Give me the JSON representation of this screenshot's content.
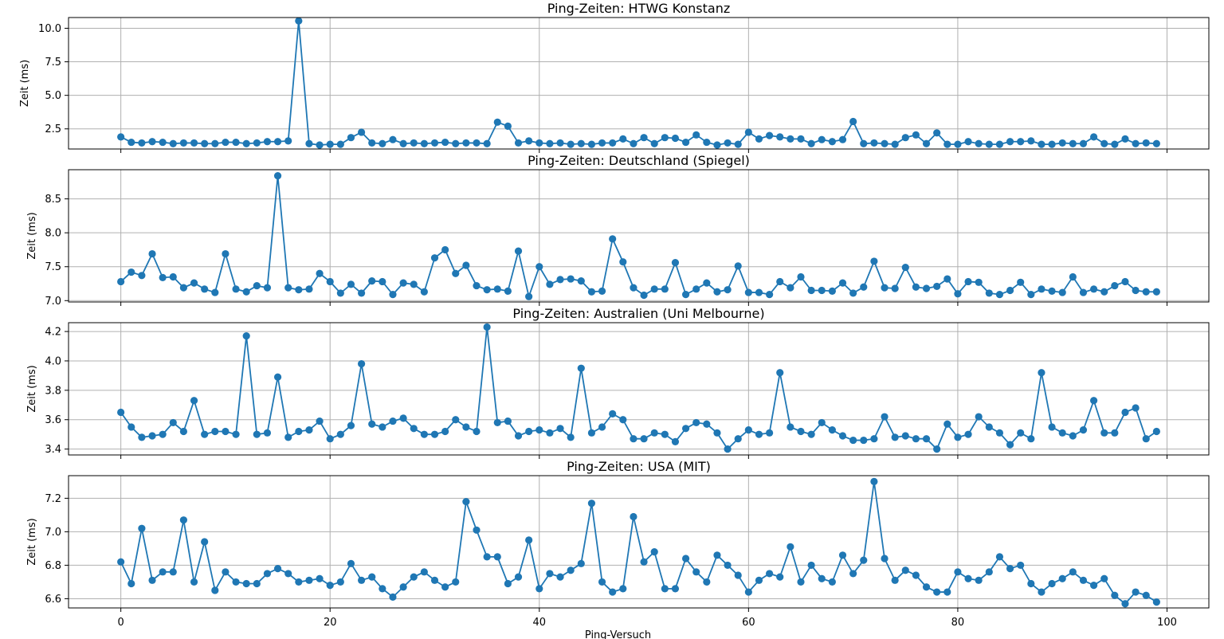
{
  "chart_data": [
    {
      "type": "line",
      "title": "Ping-Zeiten: HTWG Konstanz",
      "ylabel": "Zeit (ms)",
      "xlim": [
        -5,
        104
      ],
      "ylim": [
        1.0,
        10.8
      ],
      "yticks": [
        "2.5",
        "5.0",
        "7.5",
        "10.0"
      ],
      "color": "#1f77b4",
      "values": [
        1.9,
        1.5,
        1.45,
        1.55,
        1.5,
        1.4,
        1.45,
        1.45,
        1.4,
        1.4,
        1.5,
        1.5,
        1.4,
        1.45,
        1.55,
        1.55,
        1.6,
        10.55,
        1.4,
        1.3,
        1.35,
        1.35,
        1.85,
        2.25,
        1.45,
        1.4,
        1.7,
        1.4,
        1.45,
        1.4,
        1.45,
        1.5,
        1.4,
        1.45,
        1.45,
        1.4,
        3.0,
        2.7,
        1.45,
        1.6,
        1.45,
        1.4,
        1.45,
        1.35,
        1.4,
        1.35,
        1.45,
        1.45,
        1.75,
        1.4,
        1.85,
        1.4,
        1.85,
        1.8,
        1.5,
        2.05,
        1.5,
        1.3,
        1.45,
        1.35,
        2.25,
        1.75,
        2.0,
        1.9,
        1.75,
        1.75,
        1.4,
        1.7,
        1.55,
        1.7,
        3.05,
        1.4,
        1.45,
        1.4,
        1.35,
        1.85,
        2.05,
        1.4,
        2.2,
        1.35,
        1.35,
        1.55,
        1.4,
        1.35,
        1.35,
        1.55,
        1.55,
        1.6,
        1.35,
        1.35,
        1.45,
        1.4,
        1.4,
        1.9,
        1.4,
        1.35,
        1.75,
        1.4,
        1.45,
        1.4
      ]
    },
    {
      "type": "line",
      "title": "Ping-Zeiten: Deutschland (Spiegel)",
      "ylabel": "Zeit (ms)",
      "xlim": [
        -5,
        104
      ],
      "ylim": [
        6.98,
        8.93
      ],
      "yticks": [
        "7.0",
        "7.5",
        "8.0",
        "8.5"
      ],
      "color": "#1f77b4",
      "values": [
        7.28,
        7.42,
        7.37,
        7.69,
        7.34,
        7.35,
        7.19,
        7.26,
        7.17,
        7.12,
        7.69,
        7.17,
        7.13,
        7.22,
        7.19,
        8.84,
        7.19,
        7.16,
        7.17,
        7.4,
        7.28,
        7.11,
        7.24,
        7.11,
        7.29,
        7.28,
        7.09,
        7.26,
        7.24,
        7.13,
        7.63,
        7.75,
        7.4,
        7.52,
        7.22,
        7.16,
        7.17,
        7.14,
        7.73,
        7.06,
        7.5,
        7.24,
        7.31,
        7.32,
        7.29,
        7.13,
        7.14,
        7.91,
        7.57,
        7.19,
        7.08,
        7.17,
        7.17,
        7.56,
        7.09,
        7.17,
        7.26,
        7.13,
        7.16,
        7.51,
        7.12,
        7.12,
        7.09,
        7.28,
        7.19,
        7.35,
        7.15,
        7.15,
        7.14,
        7.26,
        7.11,
        7.2,
        7.58,
        7.19,
        7.18,
        7.49,
        7.2,
        7.18,
        7.21,
        7.32,
        7.1,
        7.28,
        7.27,
        7.11,
        7.09,
        7.15,
        7.27,
        7.09,
        7.17,
        7.14,
        7.12,
        7.35,
        7.12,
        7.17,
        7.13,
        7.22,
        7.28,
        7.15,
        7.13,
        7.13
      ]
    },
    {
      "type": "line",
      "title": "Ping-Zeiten: Australien (Uni Melbourne)",
      "ylabel": "Zeit (ms)",
      "xlim": [
        -5,
        104
      ],
      "ylim": [
        3.36,
        4.26
      ],
      "yticks": [
        "3.4",
        "3.6",
        "3.8",
        "4.0",
        "4.2"
      ],
      "color": "#1f77b4",
      "values": [
        3.65,
        3.55,
        3.48,
        3.49,
        3.5,
        3.58,
        3.52,
        3.73,
        3.5,
        3.52,
        3.52,
        3.5,
        4.17,
        3.5,
        3.51,
        3.89,
        3.48,
        3.52,
        3.53,
        3.59,
        3.47,
        3.5,
        3.56,
        3.98,
        3.57,
        3.55,
        3.59,
        3.61,
        3.54,
        3.5,
        3.5,
        3.52,
        3.6,
        3.55,
        3.52,
        4.23,
        3.58,
        3.59,
        3.49,
        3.52,
        3.53,
        3.51,
        3.54,
        3.48,
        3.95,
        3.51,
        3.55,
        3.64,
        3.6,
        3.47,
        3.47,
        3.51,
        3.5,
        3.45,
        3.54,
        3.58,
        3.57,
        3.51,
        3.4,
        3.47,
        3.53,
        3.5,
        3.51,
        3.92,
        3.55,
        3.52,
        3.5,
        3.58,
        3.53,
        3.49,
        3.46,
        3.46,
        3.47,
        3.62,
        3.48,
        3.49,
        3.47,
        3.47,
        3.4,
        3.57,
        3.48,
        3.5,
        3.62,
        3.55,
        3.51,
        3.43,
        3.51,
        3.47,
        3.92,
        3.55,
        3.51,
        3.49,
        3.53,
        3.73,
        3.51,
        3.51,
        3.65,
        3.68,
        3.47,
        3.52
      ]
    },
    {
      "type": "line",
      "title": "Ping-Zeiten: USA (MIT)",
      "ylabel": "Zeit (ms)",
      "xlabel": "Ping-Versuch",
      "xlim": [
        -5,
        104
      ],
      "xticks": [
        "0",
        "20",
        "40",
        "60",
        "80",
        "100"
      ],
      "ylim": [
        6.545,
        7.335
      ],
      "yticks": [
        "6.6",
        "6.8",
        "7.0",
        "7.2"
      ],
      "color": "#1f77b4",
      "values": [
        6.82,
        6.69,
        7.02,
        6.71,
        6.76,
        6.76,
        7.07,
        6.7,
        6.94,
        6.65,
        6.76,
        6.7,
        6.69,
        6.69,
        6.75,
        6.78,
        6.75,
        6.7,
        6.71,
        6.72,
        6.68,
        6.7,
        6.81,
        6.71,
        6.73,
        6.66,
        6.61,
        6.67,
        6.73,
        6.76,
        6.71,
        6.67,
        6.7,
        7.18,
        7.01,
        6.85,
        6.85,
        6.69,
        6.73,
        6.95,
        6.66,
        6.75,
        6.73,
        6.77,
        6.81,
        7.17,
        6.7,
        6.64,
        6.66,
        7.09,
        6.82,
        6.88,
        6.66,
        6.66,
        6.84,
        6.76,
        6.7,
        6.86,
        6.8,
        6.74,
        6.64,
        6.71,
        6.75,
        6.73,
        6.91,
        6.7,
        6.8,
        6.72,
        6.7,
        6.86,
        6.75,
        6.83,
        7.3,
        6.84,
        6.71,
        6.77,
        6.74,
        6.67,
        6.64,
        6.64,
        6.76,
        6.72,
        6.71,
        6.76,
        6.85,
        6.78,
        6.8,
        6.69,
        6.64,
        6.69,
        6.72,
        6.76,
        6.71,
        6.68,
        6.72,
        6.62,
        6.57,
        6.64,
        6.62,
        6.58
      ]
    }
  ]
}
